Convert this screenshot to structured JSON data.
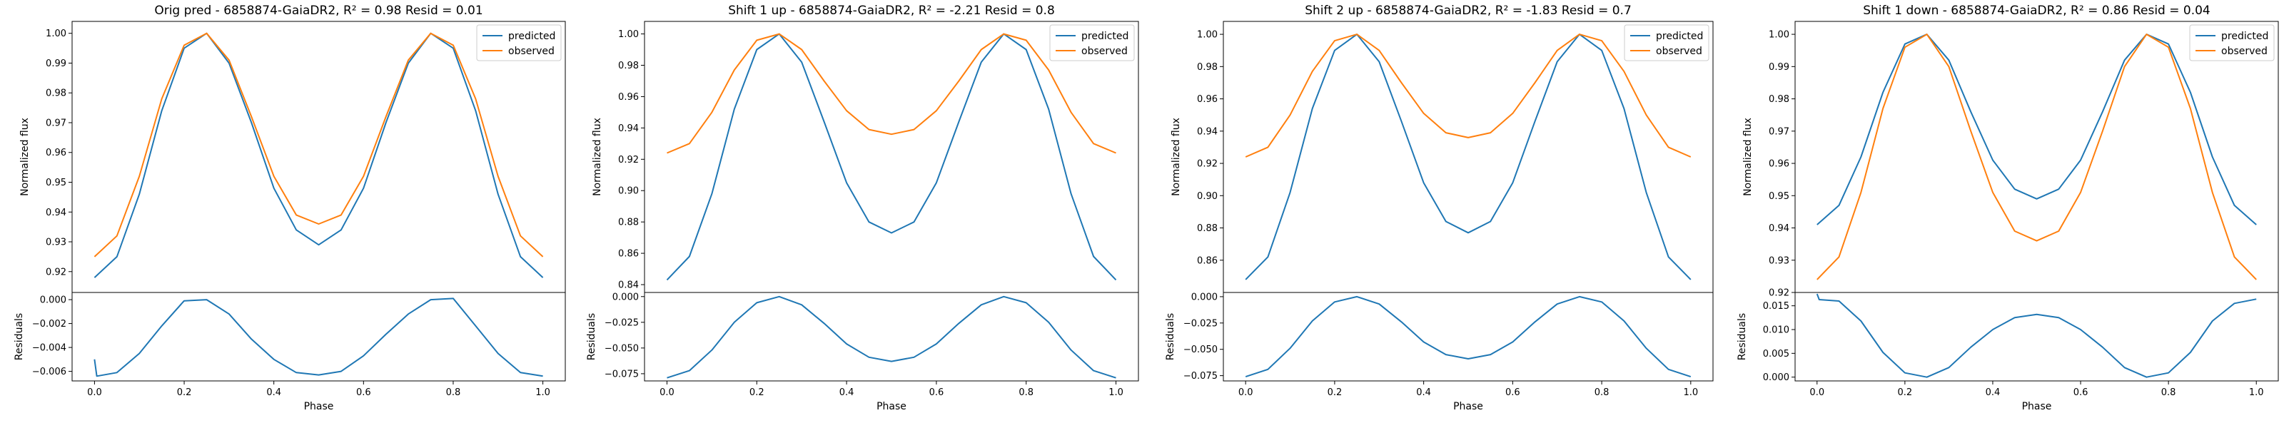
{
  "colors": {
    "predicted": "#1f77b4",
    "observed": "#ff7f0e"
  },
  "chart_data": [
    {
      "type": "line",
      "title": "Orig pred - 6858874-GaiaDR2, R² = 0.98 Resid = 0.01",
      "xlabel": "Phase",
      "ylabel_top": "Normalized flux",
      "ylabel_bottom": "Residuals",
      "legend_position": "top-right",
      "xlim": [
        -0.05,
        1.05
      ],
      "xticks": [
        0.0,
        0.2,
        0.4,
        0.6,
        0.8,
        1.0
      ],
      "xtick_labels": [
        "0.0",
        "0.2",
        "0.4",
        "0.6",
        "0.8",
        "1.0"
      ],
      "top": {
        "ylim": [
          0.913,
          1.004
        ],
        "yticks": [
          0.92,
          0.93,
          0.94,
          0.95,
          0.96,
          0.97,
          0.98,
          0.99,
          1.0
        ],
        "ytick_labels": [
          "0.92",
          "0.93",
          "0.94",
          "0.95",
          "0.96",
          "0.97",
          "0.98",
          "0.99",
          "1.00"
        ],
        "series": [
          {
            "name": "predicted",
            "x": [
              0.0,
              0.05,
              0.1,
              0.15,
              0.2,
              0.25,
              0.3,
              0.35,
              0.4,
              0.45,
              0.5,
              0.55,
              0.6,
              0.65,
              0.7,
              0.75,
              0.8,
              0.85,
              0.9,
              0.95,
              1.0
            ],
            "y": [
              0.918,
              0.925,
              0.946,
              0.974,
              0.995,
              1.0,
              0.99,
              0.97,
              0.948,
              0.934,
              0.929,
              0.934,
              0.948,
              0.97,
              0.99,
              1.0,
              0.995,
              0.974,
              0.946,
              0.925,
              0.918
            ]
          },
          {
            "name": "observed",
            "x": [
              0.0,
              0.05,
              0.1,
              0.15,
              0.2,
              0.25,
              0.3,
              0.35,
              0.4,
              0.45,
              0.5,
              0.55,
              0.6,
              0.65,
              0.7,
              0.75,
              0.8,
              0.85,
              0.9,
              0.95,
              1.0
            ],
            "y": [
              0.925,
              0.932,
              0.952,
              0.978,
              0.996,
              1.0,
              0.991,
              0.972,
              0.952,
              0.939,
              0.936,
              0.939,
              0.952,
              0.972,
              0.991,
              1.0,
              0.996,
              0.978,
              0.952,
              0.932,
              0.925
            ]
          }
        ]
      },
      "bottom": {
        "ylim": [
          -0.0068,
          0.0006
        ],
        "yticks": [
          -0.006,
          -0.004,
          -0.002,
          0.0
        ],
        "ytick_labels": [
          "−0.006",
          "−0.004",
          "−0.002",
          "0.000"
        ],
        "series": [
          {
            "name": "residual",
            "x": [
              0.0,
              0.005,
              0.05,
              0.1,
              0.15,
              0.2,
              0.25,
              0.3,
              0.35,
              0.4,
              0.45,
              0.5,
              0.55,
              0.6,
              0.65,
              0.7,
              0.75,
              0.8,
              0.85,
              0.9,
              0.95,
              1.0
            ],
            "y": [
              -0.005,
              -0.0064,
              -0.0061,
              -0.0045,
              -0.0022,
              -0.0001,
              0.0,
              -0.0012,
              -0.0033,
              -0.005,
              -0.0061,
              -0.0063,
              -0.006,
              -0.0047,
              -0.0029,
              -0.0012,
              0.0,
              0.0001,
              -0.0022,
              -0.0045,
              -0.0061,
              -0.0064
            ]
          }
        ]
      }
    },
    {
      "type": "line",
      "title": "Shift 1 up - 6858874-GaiaDR2, R² = -2.21 Resid = 0.8",
      "xlabel": "Phase",
      "ylabel_top": "Normalized flux",
      "ylabel_bottom": "Residuals",
      "legend_position": "top-right",
      "xlim": [
        -0.05,
        1.05
      ],
      "xticks": [
        0.0,
        0.2,
        0.4,
        0.6,
        0.8,
        1.0
      ],
      "xtick_labels": [
        "0.0",
        "0.2",
        "0.4",
        "0.6",
        "0.8",
        "1.0"
      ],
      "top": {
        "ylim": [
          0.835,
          1.008
        ],
        "yticks": [
          0.84,
          0.86,
          0.88,
          0.9,
          0.92,
          0.94,
          0.96,
          0.98,
          1.0
        ],
        "ytick_labels": [
          "0.84",
          "0.86",
          "0.88",
          "0.90",
          "0.92",
          "0.94",
          "0.96",
          "0.98",
          "1.00"
        ],
        "series": [
          {
            "name": "predicted",
            "x": [
              0.0,
              0.05,
              0.1,
              0.15,
              0.2,
              0.25,
              0.3,
              0.35,
              0.4,
              0.45,
              0.5,
              0.55,
              0.6,
              0.65,
              0.7,
              0.75,
              0.8,
              0.85,
              0.9,
              0.95,
              1.0
            ],
            "y": [
              0.843,
              0.858,
              0.898,
              0.952,
              0.99,
              1.0,
              0.982,
              0.944,
              0.905,
              0.88,
              0.873,
              0.88,
              0.905,
              0.944,
              0.982,
              1.0,
              0.99,
              0.952,
              0.898,
              0.858,
              0.843
            ]
          },
          {
            "name": "observed",
            "x": [
              0.0,
              0.05,
              0.1,
              0.15,
              0.2,
              0.25,
              0.3,
              0.35,
              0.4,
              0.45,
              0.5,
              0.55,
              0.6,
              0.65,
              0.7,
              0.75,
              0.8,
              0.85,
              0.9,
              0.95,
              1.0
            ],
            "y": [
              0.924,
              0.93,
              0.95,
              0.977,
              0.996,
              1.0,
              0.99,
              0.97,
              0.951,
              0.939,
              0.936,
              0.939,
              0.951,
              0.97,
              0.99,
              1.0,
              0.996,
              0.977,
              0.95,
              0.93,
              0.924
            ]
          }
        ]
      },
      "bottom": {
        "ylim": [
          -0.082,
          0.004
        ],
        "yticks": [
          -0.075,
          -0.05,
          -0.025,
          0.0
        ],
        "ytick_labels": [
          "−0.075",
          "−0.050",
          "−0.025",
          "0.000"
        ],
        "series": [
          {
            "name": "residual",
            "x": [
              0.0,
              0.05,
              0.1,
              0.15,
              0.2,
              0.25,
              0.3,
              0.35,
              0.4,
              0.45,
              0.5,
              0.55,
              0.6,
              0.65,
              0.7,
              0.75,
              0.8,
              0.85,
              0.9,
              0.95,
              1.0
            ],
            "y": [
              -0.079,
              -0.072,
              -0.052,
              -0.025,
              -0.006,
              0.0,
              -0.008,
              -0.026,
              -0.046,
              -0.059,
              -0.063,
              -0.059,
              -0.046,
              -0.026,
              -0.008,
              0.0,
              -0.006,
              -0.025,
              -0.052,
              -0.072,
              -0.079
            ]
          }
        ]
      }
    },
    {
      "type": "line",
      "title": "Shift 2 up - 6858874-GaiaDR2, R² = -1.83 Resid = 0.7",
      "xlabel": "Phase",
      "ylabel_top": "Normalized flux",
      "ylabel_bottom": "Residuals",
      "legend_position": "top-right",
      "xlim": [
        -0.05,
        1.05
      ],
      "xticks": [
        0.0,
        0.2,
        0.4,
        0.6,
        0.8,
        1.0
      ],
      "xtick_labels": [
        "0.0",
        "0.2",
        "0.4",
        "0.6",
        "0.8",
        "1.0"
      ],
      "top": {
        "ylim": [
          0.84,
          1.008
        ],
        "yticks": [
          0.86,
          0.88,
          0.9,
          0.92,
          0.94,
          0.96,
          0.98,
          1.0
        ],
        "ytick_labels": [
          "0.86",
          "0.88",
          "0.90",
          "0.92",
          "0.94",
          "0.96",
          "0.98",
          "1.00"
        ],
        "series": [
          {
            "name": "predicted",
            "x": [
              0.0,
              0.05,
              0.1,
              0.15,
              0.2,
              0.25,
              0.3,
              0.35,
              0.4,
              0.45,
              0.5,
              0.55,
              0.6,
              0.65,
              0.7,
              0.75,
              0.8,
              0.85,
              0.9,
              0.95,
              1.0
            ],
            "y": [
              0.848,
              0.862,
              0.902,
              0.954,
              0.99,
              1.0,
              0.983,
              0.946,
              0.908,
              0.884,
              0.877,
              0.884,
              0.908,
              0.946,
              0.983,
              1.0,
              0.99,
              0.954,
              0.902,
              0.862,
              0.848
            ]
          },
          {
            "name": "observed",
            "x": [
              0.0,
              0.05,
              0.1,
              0.15,
              0.2,
              0.25,
              0.3,
              0.35,
              0.4,
              0.45,
              0.5,
              0.55,
              0.6,
              0.65,
              0.7,
              0.75,
              0.8,
              0.85,
              0.9,
              0.95,
              1.0
            ],
            "y": [
              0.924,
              0.93,
              0.95,
              0.977,
              0.996,
              1.0,
              0.99,
              0.97,
              0.951,
              0.939,
              0.936,
              0.939,
              0.951,
              0.97,
              0.99,
              1.0,
              0.996,
              0.977,
              0.95,
              0.93,
              0.924
            ]
          }
        ]
      },
      "bottom": {
        "ylim": [
          -0.08,
          0.004
        ],
        "yticks": [
          -0.075,
          -0.05,
          -0.025,
          0.0
        ],
        "ytick_labels": [
          "−0.075",
          "−0.050",
          "−0.025",
          "0.000"
        ],
        "series": [
          {
            "name": "residual",
            "x": [
              0.0,
              0.05,
              0.1,
              0.15,
              0.2,
              0.25,
              0.3,
              0.35,
              0.4,
              0.45,
              0.5,
              0.55,
              0.6,
              0.65,
              0.7,
              0.75,
              0.8,
              0.85,
              0.9,
              0.95,
              1.0
            ],
            "y": [
              -0.076,
              -0.069,
              -0.049,
              -0.023,
              -0.005,
              0.0,
              -0.007,
              -0.024,
              -0.043,
              -0.055,
              -0.059,
              -0.055,
              -0.043,
              -0.024,
              -0.007,
              0.0,
              -0.005,
              -0.023,
              -0.049,
              -0.069,
              -0.076
            ]
          }
        ]
      }
    },
    {
      "type": "line",
      "title": "Shift 1 down - 6858874-GaiaDR2, R² = 0.86 Resid = 0.04",
      "xlabel": "Phase",
      "ylabel_top": "Normalized flux",
      "ylabel_bottom": "Residuals",
      "legend_position": "top-right",
      "xlim": [
        -0.05,
        1.05
      ],
      "xticks": [
        0.0,
        0.2,
        0.4,
        0.6,
        0.8,
        1.0
      ],
      "xtick_labels": [
        "0.0",
        "0.2",
        "0.4",
        "0.6",
        "0.8",
        "1.0"
      ],
      "top": {
        "ylim": [
          0.92,
          1.004
        ],
        "yticks": [
          0.92,
          0.93,
          0.94,
          0.95,
          0.96,
          0.97,
          0.98,
          0.99,
          1.0
        ],
        "ytick_labels": [
          "0.92",
          "0.93",
          "0.94",
          "0.95",
          "0.96",
          "0.97",
          "0.98",
          "0.99",
          "1.00"
        ],
        "series": [
          {
            "name": "predicted",
            "x": [
              0.0,
              0.05,
              0.1,
              0.15,
              0.2,
              0.25,
              0.3,
              0.35,
              0.4,
              0.45,
              0.5,
              0.55,
              0.6,
              0.65,
              0.7,
              0.75,
              0.8,
              0.85,
              0.9,
              0.95,
              1.0
            ],
            "y": [
              0.941,
              0.947,
              0.962,
              0.982,
              0.997,
              1.0,
              0.992,
              0.976,
              0.961,
              0.952,
              0.949,
              0.952,
              0.961,
              0.976,
              0.992,
              1.0,
              0.997,
              0.982,
              0.962,
              0.947,
              0.941
            ]
          },
          {
            "name": "observed",
            "x": [
              0.0,
              0.05,
              0.1,
              0.15,
              0.2,
              0.25,
              0.3,
              0.35,
              0.4,
              0.45,
              0.5,
              0.55,
              0.6,
              0.65,
              0.7,
              0.75,
              0.8,
              0.85,
              0.9,
              0.95,
              1.0
            ],
            "y": [
              0.924,
              0.931,
              0.951,
              0.977,
              0.996,
              1.0,
              0.99,
              0.97,
              0.951,
              0.939,
              0.936,
              0.939,
              0.951,
              0.97,
              0.99,
              1.0,
              0.996,
              0.977,
              0.951,
              0.931,
              0.924
            ]
          }
        ]
      },
      "bottom": {
        "ylim": [
          -0.0008,
          0.0178
        ],
        "yticks": [
          0.0,
          0.005,
          0.01,
          0.015
        ],
        "ytick_labels": [
          "0.000",
          "0.005",
          "0.010",
          "0.015"
        ],
        "series": [
          {
            "name": "residual",
            "x": [
              0.0,
              0.005,
              0.05,
              0.1,
              0.15,
              0.2,
              0.25,
              0.3,
              0.35,
              0.4,
              0.45,
              0.5,
              0.55,
              0.6,
              0.65,
              0.7,
              0.75,
              0.8,
              0.85,
              0.9,
              0.95,
              1.0
            ],
            "y": [
              0.0175,
              0.0163,
              0.016,
              0.0118,
              0.0052,
              0.0009,
              0.0,
              0.002,
              0.0063,
              0.01,
              0.0125,
              0.0132,
              0.0125,
              0.01,
              0.0063,
              0.002,
              0.0,
              0.0009,
              0.0052,
              0.0118,
              0.0155,
              0.0164
            ]
          }
        ]
      }
    }
  ]
}
